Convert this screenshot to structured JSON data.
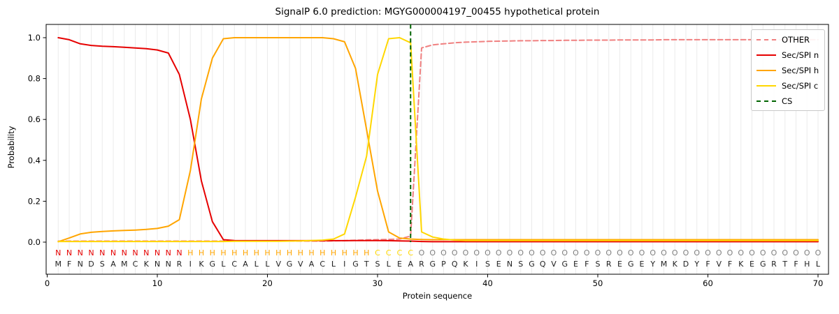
{
  "chart_data": {
    "type": "line",
    "title": "SignalP 6.0 prediction: MGYG000004197_00455 hypothetical protein",
    "xlabel": "Protein sequence",
    "ylabel": "Probability",
    "x_ticks": [
      0,
      10,
      20,
      30,
      40,
      50,
      60,
      70
    ],
    "y_ticks": [
      "0.0",
      "0.2",
      "0.4",
      "0.6",
      "0.8",
      "1.0"
    ],
    "xlim": [
      0,
      71
    ],
    "ylim": [
      -0.16,
      1.07
    ],
    "grid": true,
    "legend_position": "upper right",
    "n_positions": 70,
    "x_start": 1,
    "cs_position": 33,
    "series": [
      {
        "id": "other",
        "name": "OTHER",
        "color": "#f08080",
        "dash": true,
        "values": [
          0.005,
          0.005,
          0.005,
          0.005,
          0.005,
          0.005,
          0.005,
          0.005,
          0.005,
          0.005,
          0.005,
          0.005,
          0.005,
          0.005,
          0.005,
          0.005,
          0.005,
          0.005,
          0.005,
          0.005,
          0.005,
          0.005,
          0.005,
          0.005,
          0.005,
          0.006,
          0.007,
          0.009,
          0.011,
          0.012,
          0.013,
          0.015,
          0.03,
          0.95,
          0.965,
          0.97,
          0.975,
          0.978,
          0.98,
          0.982,
          0.983,
          0.984,
          0.985,
          0.985,
          0.986,
          0.986,
          0.987,
          0.987,
          0.988,
          0.988,
          0.988,
          0.989,
          0.989,
          0.989,
          0.989,
          0.99,
          0.99,
          0.99,
          0.99,
          0.99,
          0.99,
          0.99,
          0.99,
          0.99,
          0.99,
          0.99,
          0.99,
          0.99,
          0.99,
          0.99
        ]
      },
      {
        "id": "sec-spi-n",
        "name": "Sec/SPI n",
        "color": "#e60000",
        "dash": false,
        "values": [
          1.0,
          0.99,
          0.97,
          0.962,
          0.958,
          0.956,
          0.953,
          0.95,
          0.946,
          0.94,
          0.925,
          0.82,
          0.6,
          0.3,
          0.1,
          0.012,
          0.008,
          0.007,
          0.007,
          0.007,
          0.007,
          0.007,
          0.007,
          0.007,
          0.007,
          0.007,
          0.007,
          0.008,
          0.008,
          0.008,
          0.007,
          0.006,
          0.005,
          0.003,
          0.002,
          0.002,
          0.002,
          0.002,
          0.002,
          0.002,
          0.002,
          0.002,
          0.002,
          0.002,
          0.002,
          0.002,
          0.002,
          0.002,
          0.002,
          0.002,
          0.002,
          0.002,
          0.002,
          0.002,
          0.002,
          0.002,
          0.002,
          0.002,
          0.002,
          0.002,
          0.002,
          0.002,
          0.002,
          0.002,
          0.002,
          0.002,
          0.002,
          0.002,
          0.002,
          0.002
        ]
      },
      {
        "id": "sec-spi-h",
        "name": "Sec/SPI h",
        "color": "#ffa500",
        "dash": false,
        "values": [
          0.002,
          0.02,
          0.04,
          0.048,
          0.052,
          0.055,
          0.057,
          0.059,
          0.062,
          0.067,
          0.078,
          0.11,
          0.35,
          0.7,
          0.9,
          0.995,
          1.0,
          1.0,
          1.0,
          1.0,
          1.0,
          1.0,
          1.0,
          1.0,
          1.0,
          0.995,
          0.98,
          0.85,
          0.55,
          0.25,
          0.05,
          0.02,
          0.015,
          0.013,
          0.012,
          0.012,
          0.012,
          0.012,
          0.012,
          0.012,
          0.012,
          0.012,
          0.012,
          0.012,
          0.012,
          0.012,
          0.012,
          0.012,
          0.012,
          0.012,
          0.012,
          0.012,
          0.012,
          0.012,
          0.012,
          0.012,
          0.012,
          0.012,
          0.012,
          0.012,
          0.012,
          0.012,
          0.012,
          0.012,
          0.012,
          0.012,
          0.012,
          0.012,
          0.012,
          0.012
        ]
      },
      {
        "id": "sec-spi-c",
        "name": "Sec/SPI c",
        "color": "#ffd700",
        "dash": false,
        "values": [
          0.003,
          0.003,
          0.003,
          0.003,
          0.003,
          0.003,
          0.003,
          0.003,
          0.003,
          0.003,
          0.003,
          0.003,
          0.003,
          0.003,
          0.003,
          0.003,
          0.004,
          0.004,
          0.004,
          0.004,
          0.004,
          0.005,
          0.006,
          0.008,
          0.01,
          0.015,
          0.04,
          0.22,
          0.42,
          0.82,
          0.995,
          1.0,
          0.975,
          0.05,
          0.025,
          0.015,
          0.01,
          0.008,
          0.008,
          0.008,
          0.008,
          0.008,
          0.008,
          0.008,
          0.008,
          0.008,
          0.008,
          0.008,
          0.008,
          0.008,
          0.008,
          0.008,
          0.008,
          0.008,
          0.008,
          0.008,
          0.008,
          0.008,
          0.008,
          0.008,
          0.008,
          0.008,
          0.008,
          0.008,
          0.008,
          0.008,
          0.008,
          0.008,
          0.008,
          0.008
        ]
      }
    ],
    "cs_line": {
      "label": "CS",
      "color": "#006400",
      "dash": true
    },
    "legend": [
      {
        "id": "other",
        "label": "OTHER",
        "color": "#f08080",
        "dash": true
      },
      {
        "id": "sec-spi-n",
        "label": "Sec/SPI n",
        "color": "#e60000",
        "dash": false
      },
      {
        "id": "sec-spi-h",
        "label": "Sec/SPI h",
        "color": "#ffa500",
        "dash": false
      },
      {
        "id": "sec-spi-c",
        "label": "Sec/SPI c",
        "color": "#ffd700",
        "dash": false
      },
      {
        "id": "cs",
        "label": "CS",
        "color": "#006400",
        "dash": true
      }
    ]
  },
  "sequence": {
    "residues": "MFNDSAMCKNNRIKGLCALLVGVACLIGTSLEARGPQKISENSGQVGEFSREGEYMKDYFVFKEGRTFHL",
    "regions": "NNNNNNNNNNNNHHHHHHHHHHHHHHHHHCCCCOOOOOOOOOOOOOOOOOOOOOOOOOOOOOOOOOOOOO",
    "region_colors": {
      "N": "#e60000",
      "H": "#ffa500",
      "C": "#ffd700",
      "O": "#7f7f7f"
    },
    "letter_color": "#1f1f1f"
  },
  "style": {
    "grid_color": "#ebebeb",
    "spine_color": "#000000",
    "tick_color": "#000000",
    "background": "#ffffff"
  }
}
